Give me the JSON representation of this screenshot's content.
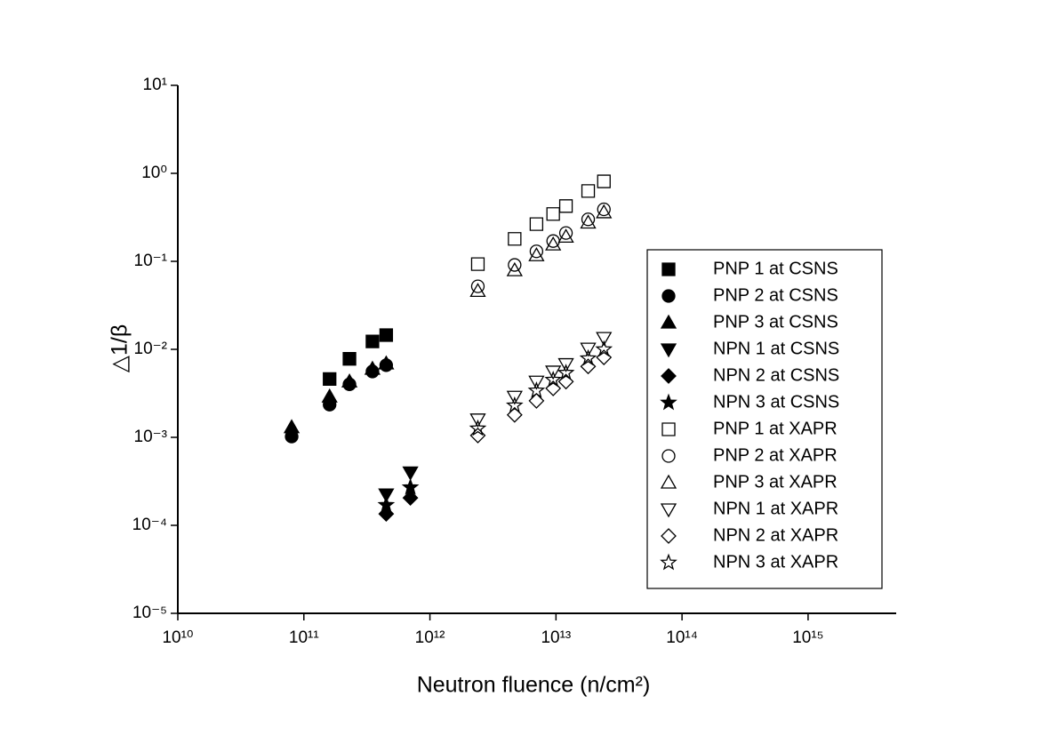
{
  "chart_data": {
    "type": "scatter",
    "xlabel": "Neutron fluence (n/cm²)",
    "ylabel": "△1/β",
    "xscale": "log",
    "yscale": "log",
    "xlim": [
      10000000000.0,
      5000000000000000.0
    ],
    "ylim": [
      1e-05,
      10
    ],
    "xticks": [
      {
        "value": 10000000000.0,
        "label": "10¹⁰"
      },
      {
        "value": 100000000000.0,
        "label": "10¹¹"
      },
      {
        "value": 1000000000000.0,
        "label": "10¹²"
      },
      {
        "value": 10000000000000.0,
        "label": "10¹³"
      },
      {
        "value": 100000000000000.0,
        "label": "10¹⁴"
      },
      {
        "value": 1000000000000000.0,
        "label": "10¹⁵"
      }
    ],
    "yticks": [
      {
        "value": 1e-05,
        "label": "10⁻⁵"
      },
      {
        "value": 0.0001,
        "label": "10⁻⁴"
      },
      {
        "value": 0.001,
        "label": "10⁻³"
      },
      {
        "value": 0.01,
        "label": "10⁻²"
      },
      {
        "value": 0.1,
        "label": "10⁻¹"
      },
      {
        "value": 1,
        "label": "10⁰"
      },
      {
        "value": 10,
        "label": "10¹"
      }
    ],
    "legend": "right",
    "series": [
      {
        "name": "PNP 1 at CSNS",
        "color": "#000000",
        "marker": "square",
        "filled": true,
        "x": [
          160000000000.0,
          230000000000.0,
          350000000000.0,
          450000000000.0
        ],
        "values": [
          0.0046,
          0.0078,
          0.0123,
          0.0145
        ]
      },
      {
        "name": "PNP 2 at CSNS",
        "color": "#000000",
        "marker": "circle",
        "filled": true,
        "x": [
          80000000000.0,
          160000000000.0,
          230000000000.0,
          350000000000.0,
          450000000000.0
        ],
        "values": [
          0.00102,
          0.00235,
          0.004,
          0.0056,
          0.0066
        ]
      },
      {
        "name": "PNP 3 at CSNS",
        "color": "#000000",
        "marker": "triangle",
        "filled": true,
        "x": [
          80000000000.0,
          160000000000.0,
          230000000000.0,
          350000000000.0,
          450000000000.0
        ],
        "values": [
          0.0013,
          0.0029,
          0.0043,
          0.006,
          0.0069
        ]
      },
      {
        "name": "NPN 1 at CSNS",
        "color": "#000000",
        "marker": "down-triangle",
        "filled": true,
        "x": [
          450000000000.0,
          700000000000.0
        ],
        "values": [
          0.000225,
          0.0004
        ]
      },
      {
        "name": "NPN 2 at CSNS",
        "color": "#000000",
        "marker": "diamond",
        "filled": true,
        "x": [
          450000000000.0,
          700000000000.0
        ],
        "values": [
          0.000135,
          0.000205
        ]
      },
      {
        "name": "NPN 3 at CSNS",
        "color": "#000000",
        "marker": "star",
        "filled": true,
        "x": [
          450000000000.0,
          700000000000.0
        ],
        "values": [
          0.00017,
          0.00027
        ]
      },
      {
        "name": "PNP 1 at XAPR",
        "color": "#000000",
        "marker": "square",
        "filled": false,
        "x": [
          2400000000000.0,
          4700000000000.0,
          7000000000000.0,
          9500000000000.0,
          12000000000000.0,
          18000000000000.0,
          24000000000000.0
        ],
        "values": [
          0.093,
          0.18,
          0.265,
          0.345,
          0.425,
          0.63,
          0.81
        ]
      },
      {
        "name": "PNP 2 at XAPR",
        "color": "#000000",
        "marker": "circle",
        "filled": false,
        "x": [
          2400000000000.0,
          4700000000000.0,
          7000000000000.0,
          9500000000000.0,
          12000000000000.0,
          18000000000000.0,
          24000000000000.0
        ],
        "values": [
          0.052,
          0.091,
          0.13,
          0.17,
          0.21,
          0.3,
          0.39
        ]
      },
      {
        "name": "PNP 3 at XAPR",
        "color": "#000000",
        "marker": "triangle",
        "filled": false,
        "x": [
          2400000000000.0,
          4700000000000.0,
          7000000000000.0,
          9500000000000.0,
          12000000000000.0,
          18000000000000.0,
          24000000000000.0
        ],
        "values": [
          0.046,
          0.079,
          0.117,
          0.155,
          0.19,
          0.275,
          0.36
        ]
      },
      {
        "name": "NPN 1 at XAPR",
        "color": "#000000",
        "marker": "down-triangle",
        "filled": false,
        "x": [
          2400000000000.0,
          4700000000000.0,
          7000000000000.0,
          9500000000000.0,
          12000000000000.0,
          18000000000000.0,
          24000000000000.0
        ],
        "values": [
          0.0016,
          0.0029,
          0.0043,
          0.0056,
          0.0068,
          0.0102,
          0.0135
        ]
      },
      {
        "name": "NPN 2 at XAPR",
        "color": "#000000",
        "marker": "diamond",
        "filled": false,
        "x": [
          2400000000000.0,
          4700000000000.0,
          7000000000000.0,
          9500000000000.0,
          12000000000000.0,
          18000000000000.0,
          24000000000000.0
        ],
        "values": [
          0.00105,
          0.0018,
          0.0026,
          0.0036,
          0.0043,
          0.0064,
          0.0081
        ]
      },
      {
        "name": "NPN 3 at XAPR",
        "color": "#000000",
        "marker": "star",
        "filled": false,
        "x": [
          2400000000000.0,
          4700000000000.0,
          7000000000000.0,
          9500000000000.0,
          12000000000000.0,
          18000000000000.0,
          24000000000000.0
        ],
        "values": [
          0.00126,
          0.0023,
          0.0034,
          0.0045,
          0.0054,
          0.0079,
          0.01
        ]
      }
    ]
  }
}
